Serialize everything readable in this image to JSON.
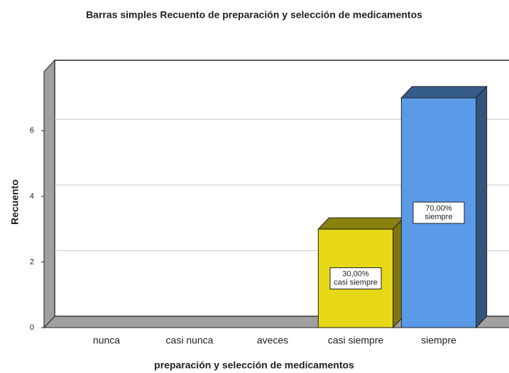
{
  "chart_data": {
    "type": "bar3d",
    "title": "Barras simples Recuento de preparación y selección de medicamentos",
    "x_label": "preparación y selección de medicamentos",
    "y_label": "Recuento",
    "categories": [
      "nunca",
      "casi nunca",
      "aveces",
      "casi siempre",
      "siempre"
    ],
    "values": [
      0,
      0,
      0,
      3,
      7
    ],
    "colors": [
      "#e6d817",
      "#e6d817",
      "#e6d817",
      "#e6d817",
      "#5a9ae6"
    ],
    "percentages": [
      null,
      null,
      null,
      30,
      70
    ],
    "percentage_labels": [
      null,
      null,
      null,
      "30,00%",
      "70,00%"
    ],
    "ylim": [
      0,
      7.8
    ],
    "yticks": [
      0,
      2,
      4,
      6
    ],
    "grid": true
  }
}
